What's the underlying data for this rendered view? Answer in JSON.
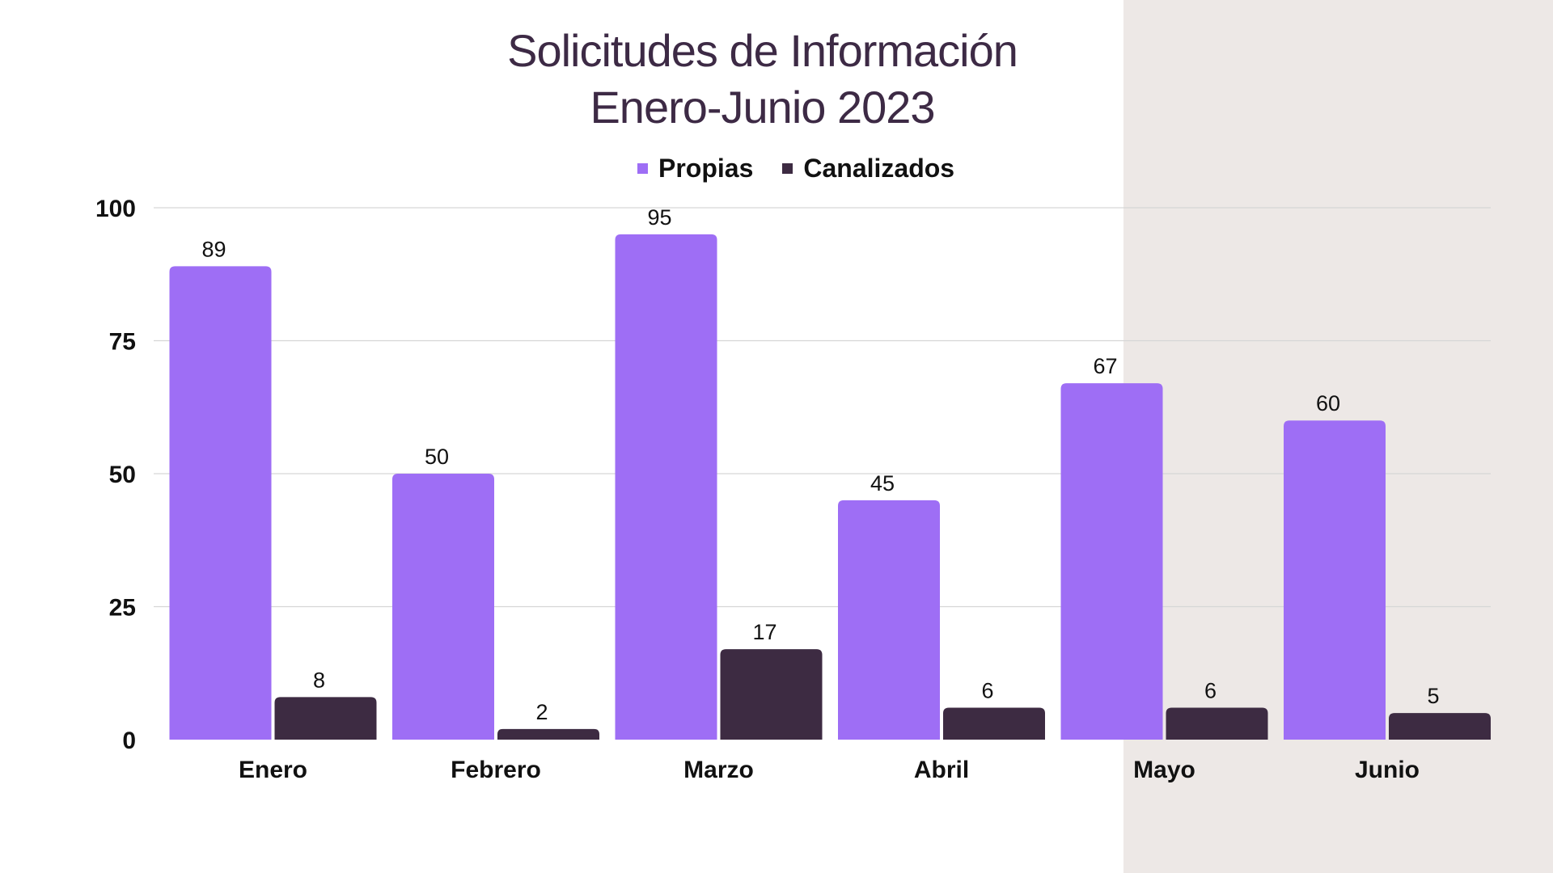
{
  "chart_data": {
    "type": "bar",
    "title": "Solicitudes de Información",
    "subtitle": "Enero-Junio 2023",
    "categories": [
      "Enero",
      "Febrero",
      "Marzo",
      "Abril",
      "Mayo",
      "Junio"
    ],
    "series": [
      {
        "name": "Propias",
        "values": [
          89,
          50,
          95,
          45,
          67,
          60
        ],
        "color": "#9e6ef5"
      },
      {
        "name": "Canalizados",
        "values": [
          8,
          2,
          17,
          6,
          6,
          5
        ],
        "color": "#3d2b42"
      }
    ],
    "yticks": [
      "0",
      "25",
      "50",
      "75",
      "100"
    ],
    "ylim": [
      0,
      100
    ],
    "xlabel": "",
    "ylabel": "",
    "legend_position": "top-center",
    "grid": true
  },
  "colors": {
    "background": "#ffffff",
    "panel": "#ede8e6",
    "title": "#3d2a45",
    "gridline": "#d6d6d6"
  }
}
